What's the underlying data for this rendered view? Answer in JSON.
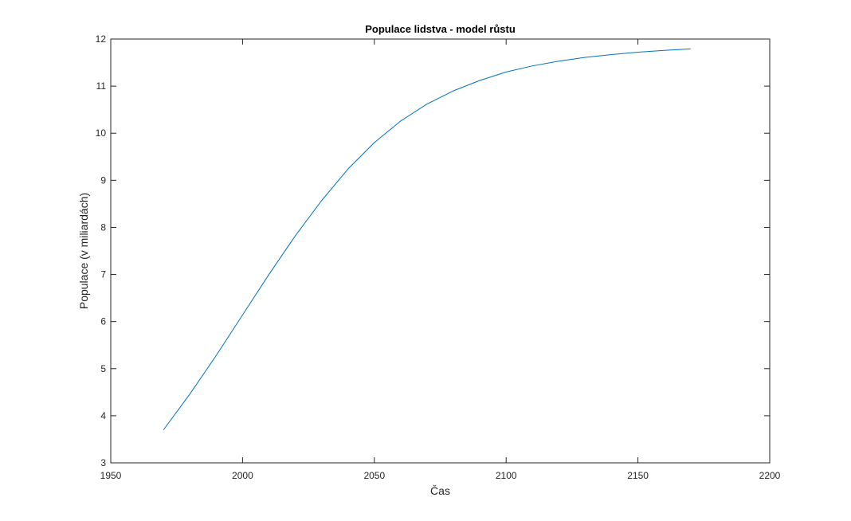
{
  "chart_data": {
    "type": "line",
    "title": "Populace lidstva - model růstu",
    "xlabel": "Čas",
    "ylabel": "Populace (v miliardách)",
    "xlim": [
      1950,
      2200
    ],
    "ylim": [
      3,
      12
    ],
    "xticks": [
      1950,
      2000,
      2050,
      2100,
      2150,
      2200
    ],
    "yticks": [
      3,
      4,
      5,
      6,
      7,
      8,
      9,
      10,
      11,
      12
    ],
    "grid": false,
    "series": [
      {
        "color": "#0072BD",
        "x": [
          1970,
          1980,
          1990,
          2000,
          2010,
          2020,
          2030,
          2040,
          2050,
          2060,
          2070,
          2080,
          2090,
          2100,
          2110,
          2120,
          2130,
          2140,
          2150,
          2160,
          2170
        ],
        "y": [
          3.7,
          4.46,
          5.28,
          6.14,
          7.0,
          7.82,
          8.57,
          9.24,
          9.8,
          10.26,
          10.62,
          10.9,
          11.12,
          11.3,
          11.43,
          11.53,
          11.61,
          11.67,
          11.72,
          11.76,
          11.79
        ]
      }
    ]
  }
}
